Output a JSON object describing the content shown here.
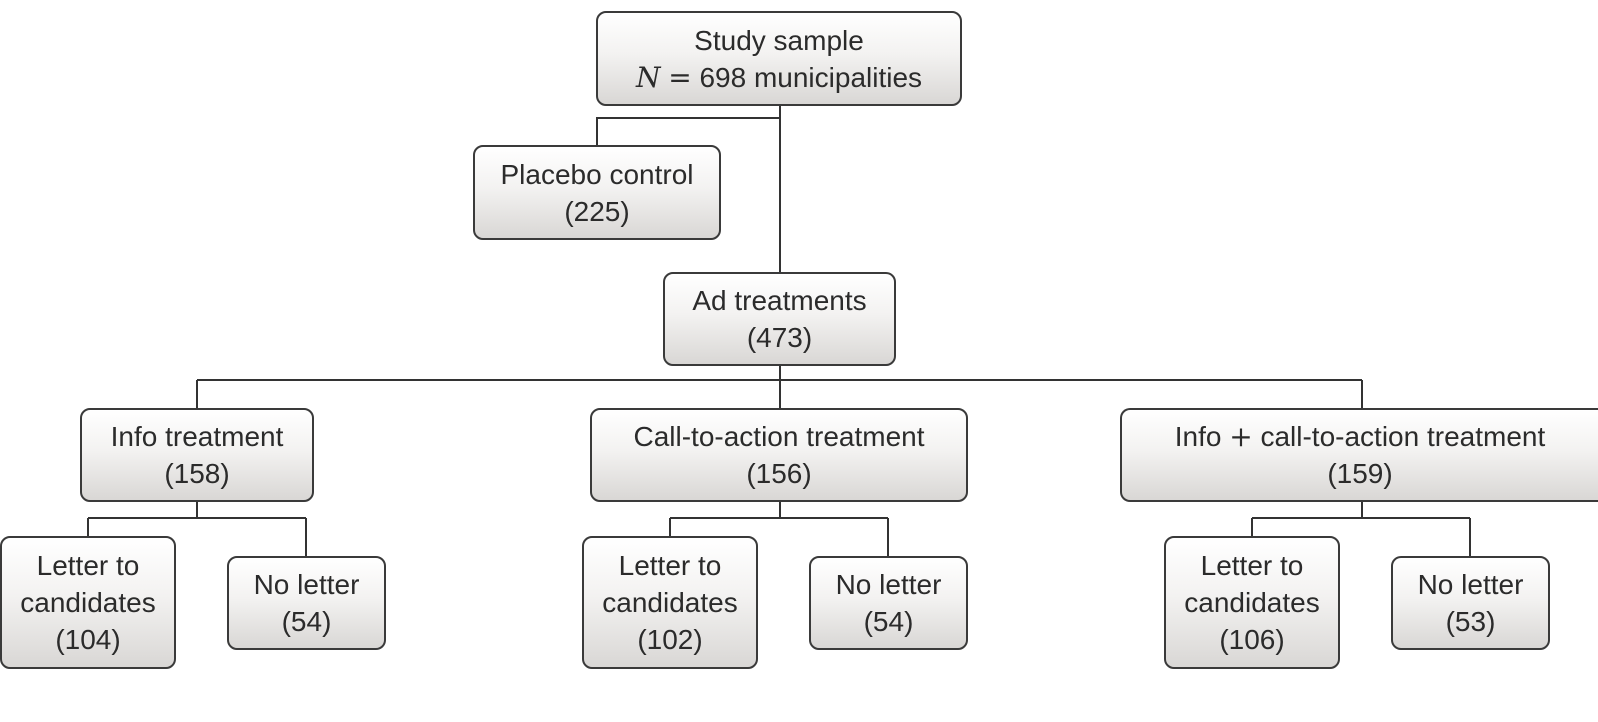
{
  "study_sample": {
    "label": "Study sample",
    "n_symbol": "N",
    "n_eq": "=",
    "n_text": "698 municipalities"
  },
  "placebo": {
    "label": "Placebo control",
    "count": "(225)"
  },
  "ad": {
    "label": "Ad treatments",
    "count": "(473)"
  },
  "info": {
    "label": "Info treatment",
    "count": "(158)"
  },
  "cta": {
    "label": "Call-to-action treatment",
    "count": "(156)"
  },
  "infocta": {
    "label_a": "Info",
    "plus": "+",
    "label_b": "call-to-action treatment",
    "count": "(159)"
  },
  "info_letter": {
    "line1": "Letter to",
    "line2": "candidates",
    "count": "(104)"
  },
  "info_noletter": {
    "label": "No letter",
    "count": "(54)"
  },
  "cta_letter": {
    "line1": "Letter to",
    "line2": "candidates",
    "count": "(102)"
  },
  "cta_noletter": {
    "label": "No letter",
    "count": "(54)"
  },
  "infocta_letter": {
    "line1": "Letter to",
    "line2": "candidates",
    "count": "(106)"
  },
  "infocta_noletter": {
    "label": "No letter",
    "count": "(53)"
  }
}
